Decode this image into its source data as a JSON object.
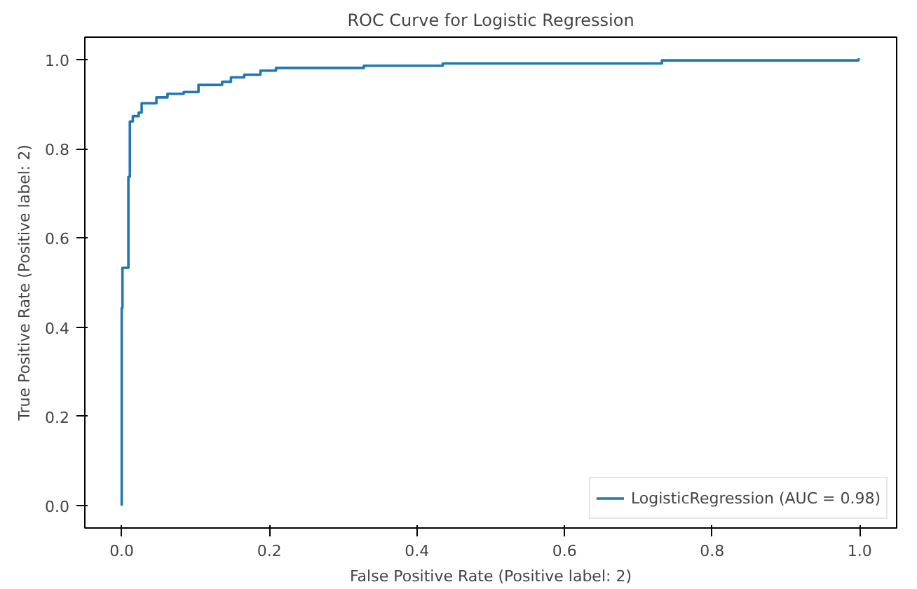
{
  "chart_data": {
    "type": "line",
    "title": "ROC Curve for Logistic Regression",
    "xlabel": "False Positive Rate (Positive label: 2)",
    "ylabel": "True Positive Rate (Positive label: 2)",
    "xlim": [
      -0.05,
      1.05
    ],
    "ylim": [
      -0.05,
      1.05
    ],
    "xticks": [
      {
        "value": 0.0,
        "label": "0.0"
      },
      {
        "value": 0.2,
        "label": "0.2"
      },
      {
        "value": 0.4,
        "label": "0.4"
      },
      {
        "value": 0.6,
        "label": "0.6"
      },
      {
        "value": 0.8,
        "label": "0.8"
      },
      {
        "value": 1.0,
        "label": "1.0"
      }
    ],
    "yticks": [
      {
        "value": 0.0,
        "label": "0.0"
      },
      {
        "value": 0.2,
        "label": "0.2"
      },
      {
        "value": 0.4,
        "label": "0.4"
      },
      {
        "value": 0.6,
        "label": "0.6"
      },
      {
        "value": 0.8,
        "label": "0.8"
      },
      {
        "value": 1.0,
        "label": "1.0"
      }
    ],
    "grid": false,
    "legend": "bottom right",
    "series": [
      {
        "name": "LogisticRegression (AUC = 0.98)",
        "color": "#1f77b4",
        "x": [
          0,
          0,
          0.001,
          0.001,
          0.009,
          0.009,
          0.011,
          0.011,
          0.015,
          0.015,
          0.023,
          0.023,
          0.027,
          0.027,
          0.047,
          0.047,
          0.062,
          0.062,
          0.084,
          0.084,
          0.104,
          0.104,
          0.136,
          0.136,
          0.148,
          0.148,
          0.166,
          0.166,
          0.188,
          0.188,
          0.209,
          0.209,
          0.328,
          0.328,
          0.435,
          0.435,
          0.732,
          0.732,
          0.998,
          0.998,
          1.0
        ],
        "values": [
          0,
          0.443,
          0.443,
          0.533,
          0.533,
          0.737,
          0.737,
          0.861,
          0.861,
          0.873,
          0.873,
          0.881,
          0.881,
          0.902,
          0.902,
          0.915,
          0.915,
          0.923,
          0.923,
          0.927,
          0.927,
          0.943,
          0.943,
          0.95,
          0.95,
          0.96,
          0.96,
          0.966,
          0.966,
          0.975,
          0.975,
          0.981,
          0.981,
          0.986,
          0.986,
          0.991,
          0.991,
          0.998,
          0.998,
          1.0,
          1.0
        ]
      }
    ]
  }
}
